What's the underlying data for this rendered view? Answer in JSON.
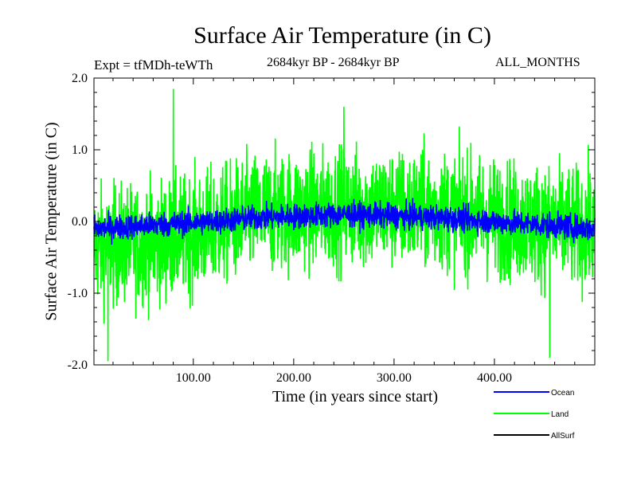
{
  "chart_data": {
    "type": "line",
    "title": "Surface Air Temperature (in C)",
    "subtitle_left": "Expt = tfMDh-teWTh",
    "subtitle_center": "2684kyr BP - 2684kyr BP",
    "subtitle_right": "ALL_MONTHS",
    "xlabel": "Time (in years since start)",
    "ylabel": "Surface Air Temperature (in C)",
    "xlim": [
      1,
      500
    ],
    "ylim": [
      -2.0,
      2.0
    ],
    "xticks": [
      100,
      200,
      300,
      400
    ],
    "xtick_labels": [
      "100.00",
      "200.00",
      "300.00",
      "400.00"
    ],
    "yticks": [
      2.0,
      1.0,
      0.0,
      -1.0,
      -2.0
    ],
    "ytick_labels": [
      "2.0",
      "1.0",
      "0.0",
      "-1.0",
      "-2.0"
    ],
    "legend_position": "bottom-right",
    "series": [
      {
        "name": "Land",
        "color": "#00ff00",
        "description": "annual-mean land temperature anomaly, high variability",
        "amplitude_envelope": 0.75,
        "trend_points": {
          "x": [
            1,
            60,
            120,
            160,
            250,
            350,
            450,
            500
          ],
          "y": [
            -0.35,
            -0.3,
            -0.1,
            0.1,
            0.2,
            0.15,
            -0.05,
            -0.1
          ]
        },
        "extremes": {
          "x": [
            15,
            80,
            250,
            455
          ],
          "y": [
            -1.95,
            1.85,
            1.6,
            -1.9
          ]
        }
      },
      {
        "name": "Ocean",
        "color": "#0000ff",
        "description": "annual-mean ocean temperature anomaly, low variability",
        "amplitude_envelope": 0.16,
        "trend_points": {
          "x": [
            1,
            60,
            120,
            160,
            250,
            350,
            450,
            500
          ],
          "y": [
            -0.1,
            -0.05,
            0.0,
            0.05,
            0.1,
            0.05,
            -0.05,
            -0.1
          ]
        }
      },
      {
        "name": "AllSurf",
        "color": "#000000",
        "description": "all-surface mean (not visibly drawn, legend only)"
      }
    ]
  }
}
